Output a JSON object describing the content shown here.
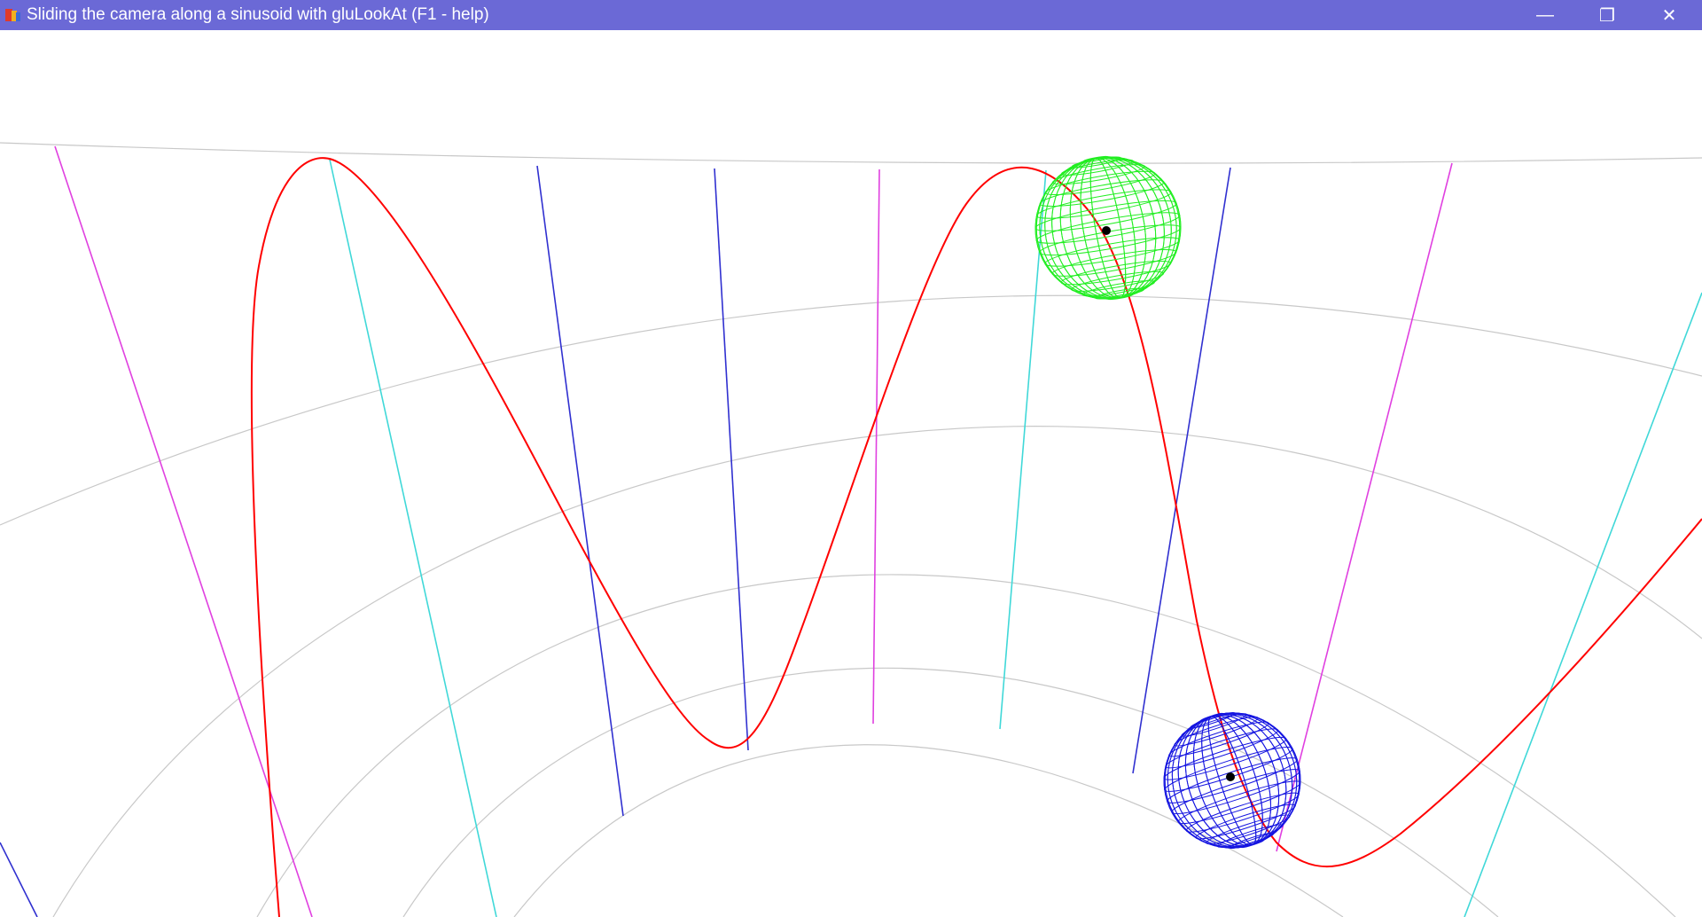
{
  "window": {
    "title": "Sliding the camera along a sinusoid with gluLookAt (F1 - help)",
    "titlebar_color": "#6b69d6",
    "title_text_color": "#ffffff",
    "controls": {
      "minimize_glyph": "—",
      "restore_glyph": "❐",
      "close_glyph": "✕"
    }
  },
  "scene": {
    "background": "#ffffff",
    "grid_arc_color": "#c8c8c8",
    "curve_color": "#ff0000",
    "rung_colors": {
      "magenta": "#e040e0",
      "cyan": "#40d8d8",
      "blue": "#3030d0"
    },
    "spheres": [
      {
        "name": "green-sphere",
        "color": "#22ee22"
      },
      {
        "name": "blue-sphere",
        "color": "#1515e0"
      }
    ],
    "marker_color": "#000000"
  }
}
